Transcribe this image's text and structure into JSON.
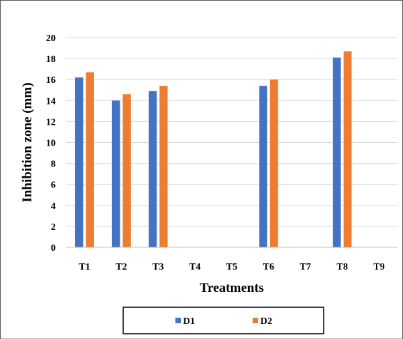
{
  "chart_data": {
    "type": "bar",
    "categories": [
      "T1",
      "T2",
      "T3",
      "T4",
      "T5",
      "T6",
      "T7",
      "T8",
      "T9"
    ],
    "series": [
      {
        "name": "D1",
        "color": "#4472C4",
        "values": [
          16.2,
          14.0,
          14.9,
          0,
          0,
          15.4,
          0,
          18.1,
          0
        ]
      },
      {
        "name": "D2",
        "color": "#ED7D31",
        "values": [
          16.7,
          14.6,
          15.4,
          0,
          0,
          16.0,
          0,
          18.7,
          0
        ]
      }
    ],
    "xlabel": "Treatments",
    "ylabel": "Inhibition zone (mm)",
    "ylim": [
      0,
      20
    ],
    "yticks": [
      0,
      2,
      4,
      6,
      8,
      10,
      12,
      14,
      16,
      18,
      20
    ],
    "grid": true,
    "legend_position": "bottom"
  }
}
